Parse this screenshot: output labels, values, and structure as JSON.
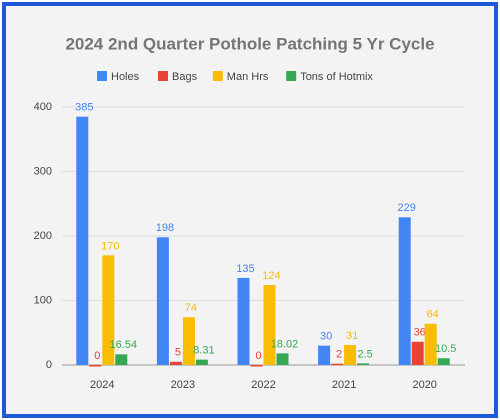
{
  "chart_data": {
    "type": "bar",
    "title": "2024 2nd Quarter Pothole Patching 5 Yr Cycle",
    "categories": [
      "2024",
      "2023",
      "2022",
      "2021",
      "2020"
    ],
    "series": [
      {
        "name": "Holes",
        "color": "#4285f4",
        "values": [
          385,
          198,
          135,
          30,
          229
        ]
      },
      {
        "name": "Bags",
        "color": "#ea4335",
        "values": [
          0,
          5,
          0,
          2,
          36
        ]
      },
      {
        "name": "Man Hrs",
        "color": "#fbbc04",
        "values": [
          170,
          74,
          124,
          31,
          64
        ]
      },
      {
        "name": "Tons of Hotmix",
        "color": "#34a853",
        "values": [
          16.54,
          8.31,
          18.02,
          2.5,
          10.5
        ]
      }
    ],
    "ylim": [
      0,
      400
    ],
    "yticks": [
      0,
      100,
      200,
      300,
      400
    ],
    "grid": true,
    "legend": "top"
  }
}
